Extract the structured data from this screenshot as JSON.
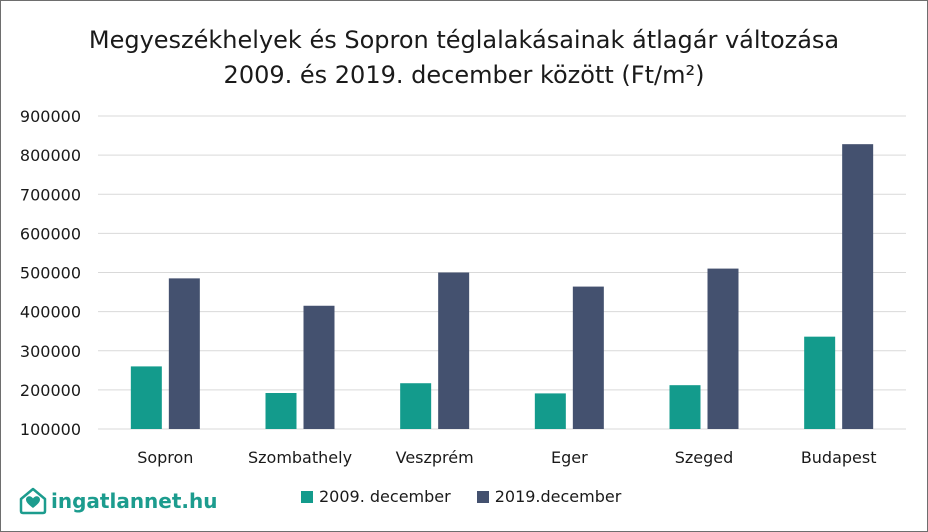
{
  "title_line1": "Megyeszékhelyek és Sopron téglalakásainak átlagár változása",
  "title_line2": "2009. és 2019. december között (Ft/m²)",
  "brand": {
    "logo_text": "ingatlannet.hu",
    "logo_icon": "house-heart-icon"
  },
  "colors": {
    "series1": "#139b8c",
    "series2": "#44516f",
    "grid": "#d9d9d9"
  },
  "chart_data": {
    "type": "bar",
    "title": "Megyeszékhelyek és Sopron téglalakásainak átlagár változása 2009. és 2019. december között (Ft/m²)",
    "categories": [
      "Sopron",
      "Szombathely",
      "Veszprém",
      "Eger",
      "Szeged",
      "Budapest"
    ],
    "series": [
      {
        "name": "2009. december",
        "values": [
          260000,
          192000,
          217000,
          191000,
          212000,
          336000
        ]
      },
      {
        "name": "2019.december",
        "values": [
          485000,
          415000,
          500000,
          464000,
          510000,
          828000
        ]
      }
    ],
    "ylim": [
      100000,
      900000
    ],
    "yticks": [
      "100000",
      "200000",
      "300000",
      "400000",
      "500000",
      "600000",
      "700000",
      "800000",
      "900000"
    ],
    "grid": true,
    "legend_position": "bottom"
  }
}
